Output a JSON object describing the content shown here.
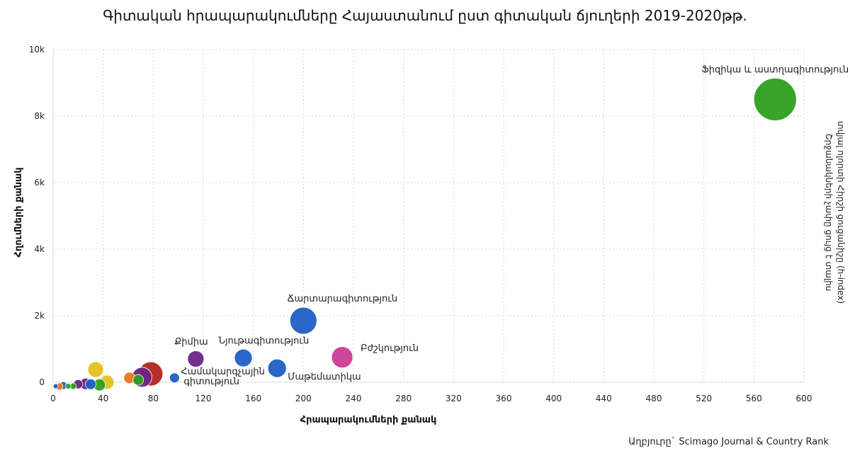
{
  "chart_data": {
    "type": "scatter",
    "title": "Գիտական հրապարակումները Հայաստանում ըստ գիտական ճյուղերի 2019-2020թթ.",
    "xlabel": "Հրապարակումների քանակ",
    "ylabel": "Հղումների քանակ",
    "y2label_line1": "Շրջանակների չափը ցույց է տալիս",
    "y2label_line2": "տվյալ ոլորտի Հիրշի ցուցանիշը (h-index)",
    "xlim": [
      0,
      600
    ],
    "ylim": [
      0,
      10000
    ],
    "x_ticks": [
      "0",
      "40",
      "80",
      "120",
      "160",
      "200",
      "240",
      "280",
      "320",
      "360",
      "400",
      "440",
      "480",
      "520",
      "560",
      "600"
    ],
    "y_ticks": [
      "0",
      "2k",
      "4k",
      "6k",
      "8k",
      "10k"
    ],
    "grid": true,
    "points": [
      {
        "label": "Ֆիզիկա և աստղագիտություն",
        "x": 577,
        "y": 8500,
        "size": 60,
        "color": "#2e9e1f"
      },
      {
        "label": "Ճարտարագիտություն",
        "x": 200,
        "y": 1850,
        "size": 38,
        "color": "#1f5fc4"
      },
      {
        "label": "Բժշկություն",
        "x": 231,
        "y": 750,
        "size": 30,
        "color": "#c93d93"
      },
      {
        "label": "Նյութագիտություն",
        "x": 152,
        "y": 730,
        "size": 25,
        "color": "#1f5fc4"
      },
      {
        "label": "Քիմիա",
        "x": 114,
        "y": 700,
        "size": 23,
        "color": "#6a2485"
      },
      {
        "label": "Մաթեմատիկա",
        "x": 179,
        "y": 420,
        "size": 26,
        "color": "#1f5fc4"
      },
      {
        "label": "Համակարգչային գիտություն",
        "x": 97,
        "y": 130,
        "size": 14,
        "color": "#1f5fc4"
      },
      {
        "label": "",
        "x": 78,
        "y": 250,
        "size": 34,
        "color": "#b3241d"
      },
      {
        "label": "",
        "x": 71,
        "y": 150,
        "size": 28,
        "color": "#6a2485"
      },
      {
        "label": "",
        "x": 34,
        "y": 380,
        "size": 22,
        "color": "#e2c21a"
      },
      {
        "label": "",
        "x": 61,
        "y": 130,
        "size": 16,
        "color": "#e8761e"
      },
      {
        "label": "",
        "x": 68,
        "y": 70,
        "size": 15,
        "color": "#2e9e1f"
      },
      {
        "label": "",
        "x": 43,
        "y": 0,
        "size": 20,
        "color": "#e2c21a"
      },
      {
        "label": "",
        "x": 37,
        "y": -80,
        "size": 17,
        "color": "#2e9e1f"
      },
      {
        "label": "",
        "x": 30,
        "y": -60,
        "size": 15,
        "color": "#1f5fc4"
      },
      {
        "label": "",
        "x": 26,
        "y": -50,
        "size": 16,
        "color": "#6a2485"
      },
      {
        "label": "",
        "x": 20,
        "y": -60,
        "size": 13,
        "color": "#6a2485"
      },
      {
        "label": "",
        "x": 16,
        "y": -120,
        "size": 9,
        "color": "#2e9e1f"
      },
      {
        "label": "",
        "x": 12,
        "y": -120,
        "size": 8,
        "color": "#2e9e1f"
      },
      {
        "label": "",
        "x": 8,
        "y": -100,
        "size": 11,
        "color": "#1f5fc4"
      },
      {
        "label": "",
        "x": 5,
        "y": -130,
        "size": 10,
        "color": "#e8761e"
      },
      {
        "label": "",
        "x": 2,
        "y": -120,
        "size": 7,
        "color": "#1f5fc4"
      }
    ]
  },
  "source": "Աղբյուրը` Scimago Journal & Country Rank"
}
